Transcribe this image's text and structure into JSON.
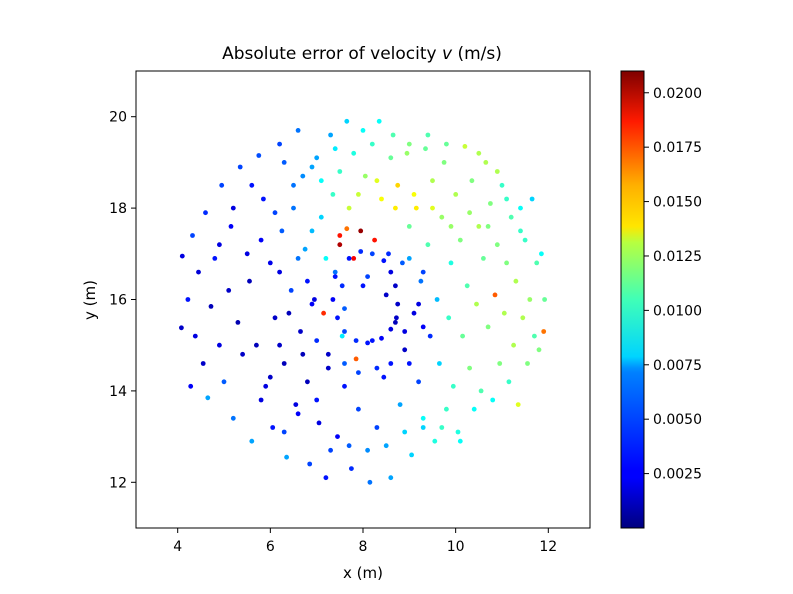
{
  "chart_data": {
    "type": "scatter",
    "title": "Absolute error of velocity v (m/s)",
    "title_prefix": "Absolute error of velocity ",
    "title_var": "v",
    "title_suffix": " (m/s)",
    "xlabel": "x (m)",
    "ylabel": "y (m)",
    "xlim": [
      3.1,
      12.9
    ],
    "ylim": [
      11.0,
      21.0
    ],
    "xticks": [
      4,
      6,
      8,
      10,
      12
    ],
    "yticks": [
      12,
      14,
      16,
      18,
      20
    ],
    "xtick_labels": [
      "4",
      "6",
      "8",
      "10",
      "12"
    ],
    "ytick_labels": [
      "12",
      "14",
      "16",
      "18",
      "20"
    ],
    "grid": false,
    "colormap": "jet",
    "colorbar": {
      "min": 0.0,
      "max": 0.021,
      "ticks": [
        0.0025,
        0.005,
        0.0075,
        0.01,
        0.0125,
        0.015,
        0.0175,
        0.02
      ],
      "tick_labels": [
        "0.0025",
        "0.0050",
        "0.0075",
        "0.0100",
        "0.0125",
        "0.0150",
        "0.0175",
        "0.0200"
      ]
    },
    "points": [
      [
        4.08,
        15.38,
        0.0015
      ],
      [
        4.1,
        16.95,
        0.002
      ],
      [
        4.22,
        16.0,
        0.003
      ],
      [
        4.28,
        14.1,
        0.0025
      ],
      [
        4.32,
        17.4,
        0.004
      ],
      [
        4.38,
        15.2,
        0.002
      ],
      [
        4.45,
        16.6,
        0.0018
      ],
      [
        4.55,
        14.6,
        0.0015
      ],
      [
        4.6,
        17.9,
        0.0035
      ],
      [
        4.65,
        13.85,
        0.006
      ],
      [
        4.72,
        15.85,
        0.0012
      ],
      [
        4.8,
        16.9,
        0.003
      ],
      [
        4.9,
        15.0,
        0.002
      ],
      [
        4.95,
        18.5,
        0.004
      ],
      [
        5.0,
        14.2,
        0.0045
      ],
      [
        5.1,
        16.2,
        0.0015
      ],
      [
        5.15,
        17.6,
        0.0025
      ],
      [
        5.2,
        13.4,
        0.005
      ],
      [
        5.3,
        15.5,
        0.001
      ],
      [
        5.35,
        18.9,
        0.004
      ],
      [
        5.4,
        14.8,
        0.0015
      ],
      [
        5.5,
        17.0,
        0.002
      ],
      [
        5.55,
        16.4,
        0.0012
      ],
      [
        5.6,
        12.9,
        0.006
      ],
      [
        5.7,
        15.0,
        0.0012
      ],
      [
        5.75,
        19.15,
        0.0042
      ],
      [
        5.85,
        18.2,
        0.003
      ],
      [
        5.9,
        14.1,
        0.002
      ],
      [
        6.0,
        16.8,
        0.0022
      ],
      [
        6.05,
        13.2,
        0.003
      ],
      [
        6.1,
        15.6,
        0.0015
      ],
      [
        6.2,
        19.4,
        0.004
      ],
      [
        6.25,
        17.5,
        0.0045
      ],
      [
        6.3,
        14.6,
        0.0012
      ],
      [
        6.35,
        12.55,
        0.006
      ],
      [
        6.45,
        16.2,
        0.004
      ],
      [
        6.5,
        18.5,
        0.005
      ],
      [
        6.55,
        13.7,
        0.002
      ],
      [
        6.6,
        19.7,
        0.005
      ],
      [
        6.65,
        15.3,
        0.0015
      ],
      [
        6.75,
        17.1,
        0.006
      ],
      [
        6.8,
        14.2,
        0.0012
      ],
      [
        6.85,
        12.4,
        0.004
      ],
      [
        6.9,
        18.9,
        0.006
      ],
      [
        6.95,
        16.0,
        0.002
      ],
      [
        7.05,
        13.3,
        0.002
      ],
      [
        7.1,
        17.8,
        0.007
      ],
      [
        7.15,
        15.7,
        0.0175
      ],
      [
        7.2,
        12.1,
        0.003
      ],
      [
        7.25,
        14.5,
        0.0015
      ],
      [
        7.3,
        19.6,
        0.006
      ],
      [
        7.35,
        18.3,
        0.009
      ],
      [
        7.4,
        16.6,
        0.005
      ],
      [
        7.45,
        13.0,
        0.0025
      ],
      [
        7.5,
        17.2,
        0.02
      ],
      [
        7.55,
        15.2,
        0.0075
      ],
      [
        7.6,
        14.1,
        0.003
      ],
      [
        7.65,
        19.9,
        0.007
      ],
      [
        7.7,
        18.0,
        0.012
      ],
      [
        7.75,
        12.3,
        0.0035
      ],
      [
        7.8,
        16.9,
        0.0185
      ],
      [
        7.85,
        14.7,
        0.0165
      ],
      [
        7.9,
        13.6,
        0.004
      ],
      [
        7.95,
        17.5,
        0.0205
      ],
      [
        8.0,
        19.7,
        0.008
      ],
      [
        8.05,
        18.7,
        0.011
      ],
      [
        8.1,
        16.5,
        0.004
      ],
      [
        8.15,
        12.0,
        0.005
      ],
      [
        8.2,
        15.1,
        0.003
      ],
      [
        8.25,
        17.3,
        0.018
      ],
      [
        8.3,
        13.2,
        0.004
      ],
      [
        8.35,
        19.9,
        0.008
      ],
      [
        8.4,
        18.2,
        0.013
      ],
      [
        8.45,
        14.3,
        0.003
      ],
      [
        8.5,
        16.1,
        0.0015
      ],
      [
        8.55,
        17.0,
        0.0035
      ],
      [
        8.6,
        12.1,
        0.006
      ],
      [
        8.65,
        19.6,
        0.0095
      ],
      [
        8.7,
        15.5,
        0.0012
      ],
      [
        8.75,
        18.5,
        0.014
      ],
      [
        8.8,
        13.7,
        0.006
      ],
      [
        8.85,
        16.8,
        0.0045
      ],
      [
        8.9,
        14.9,
        0.0015
      ],
      [
        8.95,
        19.2,
        0.011
      ],
      [
        9.0,
        17.6,
        0.01
      ],
      [
        9.05,
        12.6,
        0.007
      ],
      [
        9.1,
        15.7,
        0.002
      ],
      [
        9.15,
        18.0,
        0.0135
      ],
      [
        9.2,
        14.2,
        0.004
      ],
      [
        9.25,
        16.4,
        0.005
      ],
      [
        9.3,
        13.2,
        0.007
      ],
      [
        9.35,
        19.3,
        0.01
      ],
      [
        9.4,
        17.2,
        0.0095
      ],
      [
        9.45,
        15.2,
        0.0035
      ],
      [
        9.5,
        18.6,
        0.0115
      ],
      [
        9.55,
        12.9,
        0.0085
      ],
      [
        9.6,
        16.0,
        0.0065
      ],
      [
        9.65,
        14.6,
        0.007
      ],
      [
        9.7,
        17.8,
        0.011
      ],
      [
        9.75,
        19.0,
        0.0105
      ],
      [
        9.8,
        13.6,
        0.009
      ],
      [
        9.85,
        15.6,
        0.009
      ],
      [
        9.9,
        16.8,
        0.0085
      ],
      [
        9.95,
        14.1,
        0.009
      ],
      [
        10.0,
        18.3,
        0.0115
      ],
      [
        10.05,
        13.1,
        0.0085
      ],
      [
        10.1,
        17.3,
        0.0105
      ],
      [
        10.15,
        15.2,
        0.01
      ],
      [
        10.2,
        19.35,
        0.012
      ],
      [
        10.25,
        16.3,
        0.0095
      ],
      [
        10.3,
        14.5,
        0.0105
      ],
      [
        10.35,
        18.6,
        0.0105
      ],
      [
        10.4,
        13.6,
        0.008
      ],
      [
        10.45,
        15.9,
        0.0115
      ],
      [
        10.5,
        17.6,
        0.0115
      ],
      [
        10.55,
        14.0,
        0.0095
      ],
      [
        10.6,
        16.9,
        0.01
      ],
      [
        10.65,
        19.0,
        0.0115
      ],
      [
        10.7,
        15.4,
        0.0105
      ],
      [
        10.75,
        18.1,
        0.0105
      ],
      [
        10.8,
        13.8,
        0.008
      ],
      [
        10.85,
        16.1,
        0.0165
      ],
      [
        10.9,
        17.2,
        0.0105
      ],
      [
        10.95,
        14.6,
        0.0105
      ],
      [
        11.0,
        18.5,
        0.009
      ],
      [
        11.05,
        15.7,
        0.0115
      ],
      [
        11.1,
        16.8,
        0.0105
      ],
      [
        11.15,
        14.2,
        0.009
      ],
      [
        11.2,
        17.8,
        0.0095
      ],
      [
        11.25,
        15.0,
        0.0115
      ],
      [
        11.3,
        16.4,
        0.0115
      ],
      [
        11.35,
        13.7,
        0.0125
      ],
      [
        11.4,
        18.0,
        0.008
      ],
      [
        11.45,
        15.6,
        0.0115
      ],
      [
        11.5,
        17.3,
        0.009
      ],
      [
        11.55,
        14.6,
        0.0105
      ],
      [
        11.6,
        16.0,
        0.011
      ],
      [
        11.65,
        18.2,
        0.007
      ],
      [
        11.7,
        15.2,
        0.0095
      ],
      [
        11.75,
        16.8,
        0.0095
      ],
      [
        11.8,
        14.9,
        0.0105
      ],
      [
        11.85,
        17.0,
        0.008
      ],
      [
        11.9,
        15.3,
        0.016
      ],
      [
        11.92,
        16.0,
        0.01
      ],
      [
        7.4,
        16.5,
        0.003
      ],
      [
        7.35,
        16.0,
        0.0025
      ],
      [
        7.45,
        15.6,
        0.003
      ],
      [
        7.6,
        15.3,
        0.004
      ],
      [
        7.7,
        16.9,
        0.003
      ],
      [
        7.95,
        17.05,
        0.0035
      ],
      [
        8.2,
        17.0,
        0.004
      ],
      [
        8.45,
        16.85,
        0.003
      ],
      [
        8.6,
        16.6,
        0.002
      ],
      [
        8.7,
        16.3,
        0.0015
      ],
      [
        8.75,
        15.9,
        0.0015
      ],
      [
        8.72,
        15.6,
        0.0015
      ],
      [
        8.6,
        15.35,
        0.002
      ],
      [
        8.4,
        15.15,
        0.0025
      ],
      [
        8.1,
        15.05,
        0.003
      ],
      [
        7.85,
        15.1,
        0.0035
      ],
      [
        7.6,
        15.8,
        0.0045
      ],
      [
        7.55,
        16.3,
        0.0035
      ],
      [
        6.8,
        16.4,
        0.003
      ],
      [
        6.9,
        15.9,
        0.0025
      ],
      [
        7.0,
        15.1,
        0.0035
      ],
      [
        7.2,
        16.9,
        0.008
      ],
      [
        6.7,
        14.8,
        0.0012
      ],
      [
        9.2,
        15.9,
        0.002
      ],
      [
        9.3,
        15.4,
        0.0025
      ],
      [
        9.3,
        16.6,
        0.004
      ],
      [
        9.0,
        16.9,
        0.006
      ],
      [
        8.9,
        15.3,
        0.002
      ],
      [
        9.0,
        14.6,
        0.003
      ],
      [
        8.6,
        14.6,
        0.003
      ],
      [
        8.3,
        14.5,
        0.0035
      ],
      [
        7.9,
        14.4,
        0.004
      ],
      [
        7.6,
        14.6,
        0.0045
      ],
      [
        7.25,
        14.8,
        0.0015
      ],
      [
        6.6,
        16.9,
        0.005
      ],
      [
        6.4,
        15.7,
        0.0012
      ],
      [
        6.2,
        15.0,
        0.0015
      ],
      [
        6.0,
        14.3,
        0.0015
      ],
      [
        5.8,
        13.8,
        0.002
      ],
      [
        6.3,
        13.1,
        0.004
      ],
      [
        6.6,
        13.5,
        0.0025
      ],
      [
        7.0,
        13.8,
        0.003
      ],
      [
        7.3,
        12.7,
        0.004
      ],
      [
        7.7,
        12.8,
        0.0045
      ],
      [
        8.1,
        12.7,
        0.0055
      ],
      [
        8.5,
        12.8,
        0.006
      ],
      [
        8.9,
        13.1,
        0.007
      ],
      [
        9.3,
        13.4,
        0.008
      ],
      [
        9.7,
        13.2,
        0.009
      ],
      [
        10.1,
        12.9,
        0.008
      ],
      [
        6.1,
        17.9,
        0.004
      ],
      [
        5.6,
        18.5,
        0.003
      ],
      [
        5.2,
        18.0,
        0.002
      ],
      [
        4.9,
        17.2,
        0.002
      ],
      [
        5.8,
        17.3,
        0.0025
      ],
      [
        6.2,
        16.6,
        0.002
      ],
      [
        6.5,
        18.0,
        0.005
      ],
      [
        6.9,
        17.5,
        0.0065
      ],
      [
        7.1,
        18.6,
        0.008
      ],
      [
        7.5,
        18.8,
        0.009
      ],
      [
        7.9,
        18.3,
        0.012
      ],
      [
        8.3,
        18.6,
        0.0125
      ],
      [
        8.7,
        18.0,
        0.0135
      ],
      [
        9.1,
        18.3,
        0.013
      ],
      [
        9.5,
        18.0,
        0.0125
      ],
      [
        9.9,
        17.6,
        0.011
      ],
      [
        10.3,
        17.9,
        0.011
      ],
      [
        10.7,
        17.6,
        0.0105
      ],
      [
        11.1,
        18.2,
        0.009
      ],
      [
        11.4,
        17.5,
        0.009
      ],
      [
        7.8,
        19.2,
        0.0085
      ],
      [
        8.2,
        19.4,
        0.009
      ],
      [
        8.6,
        19.1,
        0.01
      ],
      [
        9.0,
        19.4,
        0.0105
      ],
      [
        9.4,
        19.6,
        0.0095
      ],
      [
        9.8,
        19.4,
        0.01
      ],
      [
        7.4,
        19.3,
        0.0075
      ],
      [
        7.0,
        19.1,
        0.006
      ],
      [
        6.7,
        18.7,
        0.0055
      ],
      [
        6.3,
        19.0,
        0.0045
      ],
      [
        10.5,
        19.2,
        0.0115
      ],
      [
        10.9,
        18.8,
        0.0115
      ],
      [
        8.0,
        16.3,
        0.003
      ],
      [
        7.5,
        17.4,
        0.018
      ],
      [
        7.65,
        17.55,
        0.016
      ]
    ]
  }
}
